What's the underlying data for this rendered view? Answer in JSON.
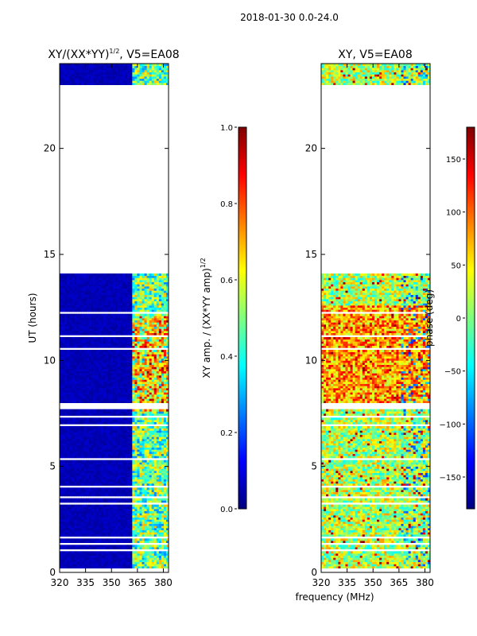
{
  "suptitle": "2018-01-30 0.0-24.0",
  "xlabel_shared": "frequency (MHz)",
  "colors": {
    "jet": [
      "#00007f",
      "#0000ff",
      "#007fff",
      "#00ffff",
      "#7fff7f",
      "#ffff00",
      "#ff7f00",
      "#ff0000",
      "#7f0000"
    ],
    "frame": "#000000",
    "background": "#ffffff"
  },
  "chart_data": [
    {
      "type": "heatmap",
      "title": "XY/(XX*YY)",
      "title_superscript": "1/2",
      "title_suffix": ", V5=EA08",
      "xlabel": "",
      "ylabel": "UT (hours)",
      "xlim": [
        320,
        383
      ],
      "ylim": [
        0,
        24
      ],
      "xticks": [
        320,
        335,
        350,
        365,
        380
      ],
      "yticks": [
        0,
        5,
        10,
        15,
        20
      ],
      "empty_time_ranges_hours": [
        [
          14.0,
          23.0
        ]
      ],
      "colorbar": {
        "label": "XY amp. / (XX*YY amp)",
        "label_superscript": "1/2",
        "range": [
          0.0,
          1.0
        ],
        "ticks": [
          "0.0",
          "0.2",
          "0.4",
          "0.6",
          "0.8",
          "1.0"
        ],
        "tick_values": [
          0.0,
          0.2,
          0.4,
          0.6,
          0.8,
          1.0
        ]
      }
    },
    {
      "type": "heatmap",
      "title": "XY, V5=EA08",
      "xlabel": "frequency (MHz)",
      "ylabel": "",
      "xlim": [
        320,
        383
      ],
      "ylim": [
        0,
        24
      ],
      "xticks": [
        320,
        335,
        350,
        365,
        380
      ],
      "yticks": [
        0,
        5,
        10,
        15,
        20
      ],
      "empty_time_ranges_hours": [
        [
          14.0,
          23.0
        ]
      ],
      "colorbar": {
        "label": "phase (deg)",
        "range": [
          -180,
          180
        ],
        "ticks": [
          "150",
          "100",
          "50",
          "0",
          "−50",
          "−100",
          "−150"
        ],
        "tick_values": [
          150,
          100,
          50,
          0,
          -50,
          -100,
          -150
        ]
      }
    }
  ]
}
